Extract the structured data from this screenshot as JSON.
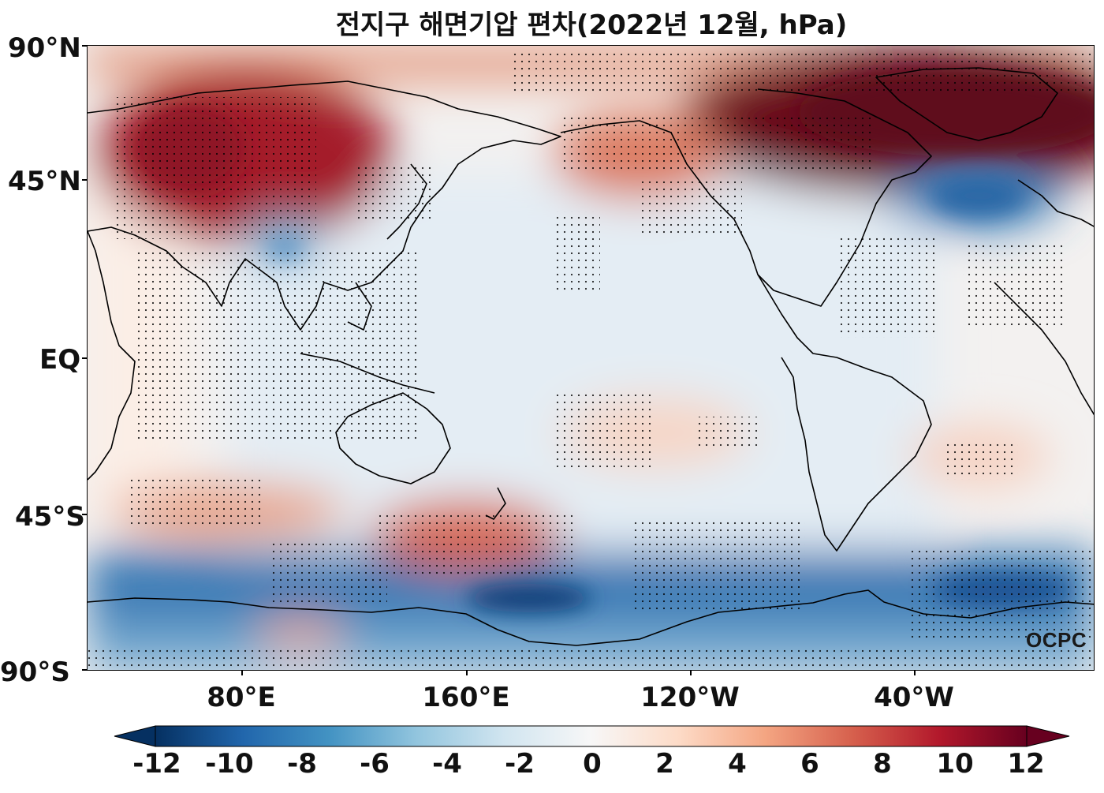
{
  "title": "전지구 해면기압 편차(2022년 12월, hPa)",
  "lat_labels": [
    "90°N",
    "45°N",
    "EQ",
    "45°S",
    "90°S"
  ],
  "lon_labels": [
    "80°E",
    "160°E",
    "120°W",
    "40°W"
  ],
  "colorbar": {
    "ticks": [
      "-12",
      "-10",
      "-8",
      "-6",
      "-4",
      "-2",
      "0",
      "2",
      "4",
      "6",
      "8",
      "10",
      "12"
    ],
    "range": [
      -12,
      12
    ],
    "extend": "both",
    "colormap": "RdBu_r"
  },
  "watermark": "OCPC",
  "colors": {
    "strong_negative": "#053061",
    "negative": "#4393c3",
    "neutral": "#f7f7f7",
    "positive": "#d6604d",
    "strong_positive": "#67001f"
  }
}
